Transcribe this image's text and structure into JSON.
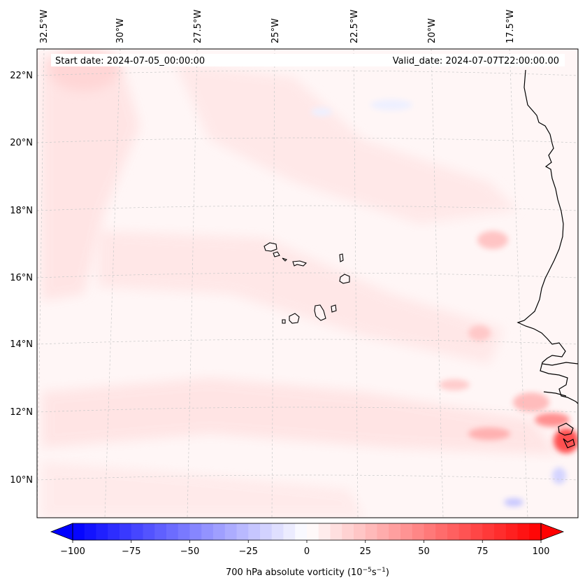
{
  "map": {
    "start_date": "Start date: 2024-07-05_00:00:00",
    "valid_date": "Valid_date: 2024-07-07T22:00:00.00",
    "lon_labels": [
      "32.5°W",
      "30°W",
      "27.5°W",
      "25°W",
      "22.5°W",
      "20°W",
      "17.5°W"
    ],
    "lat_labels": [
      "22°N",
      "20°N",
      "18°N",
      "16°N",
      "14°N",
      "12°N",
      "10°N"
    ],
    "field": "700 hPa absolute vorticity",
    "region": "Cabo Verde and West African coast"
  },
  "colorbar": {
    "label_main": "700 hPa absolute vorticity (10",
    "label_exp1": "−5",
    "label_mid": "s",
    "label_exp2": "−1",
    "label_end": ")",
    "ticks": [
      "−100",
      "−75",
      "−50",
      "−25",
      "0",
      "25",
      "50",
      "75",
      "100"
    ],
    "range": [
      -100,
      100
    ],
    "n_levels": 40,
    "colors": {
      "negative": "#0000ff",
      "zero": "#ffffff",
      "positive": "#ff0000"
    }
  }
}
